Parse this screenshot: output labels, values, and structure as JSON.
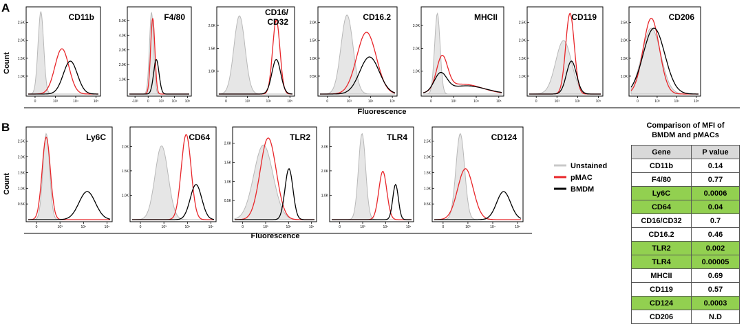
{
  "panel_a_label": "A",
  "panel_b_label": "B",
  "y_axis_label": "Count",
  "x_axis_label": "Fluorescence",
  "legend": [
    {
      "name": "Unstained",
      "color": "#c8c8c8"
    },
    {
      "name": "pMAC",
      "color": "#e8262a"
    },
    {
      "name": "BMDM",
      "color": "#000000"
    }
  ],
  "chart_data": [
    {
      "type": "histogram",
      "panel": "A",
      "marker": "CD11b",
      "title_lines": [
        "CD11b"
      ],
      "yticks": [
        "1.0K",
        "1.5K",
        "2.0K",
        "2.5K"
      ],
      "xticks": [
        "0",
        "10³",
        "10⁴",
        "10⁵"
      ],
      "series": [
        {
          "name": "Unstained",
          "peaks": [
            [
              0.18,
              0.04,
              1.0
            ]
          ]
        },
        {
          "name": "pMAC",
          "peaks": [
            [
              0.48,
              0.1,
              0.55
            ]
          ]
        },
        {
          "name": "BMDM",
          "peaks": [
            [
              0.6,
              0.1,
              0.4
            ]
          ]
        }
      ]
    },
    {
      "type": "histogram",
      "panel": "A",
      "marker": "F4/80",
      "title_lines": [
        "F4/80"
      ],
      "yticks": [
        "1.0K",
        "2.0K",
        "3.0K",
        "4.0K",
        "5.0K"
      ],
      "xticks": [
        "-10³",
        "0",
        "10³",
        "10⁴",
        "10⁵"
      ],
      "series": [
        {
          "name": "Unstained",
          "peaks": [
            [
              0.37,
              0.035,
              0.99
            ]
          ]
        },
        {
          "name": "pMAC",
          "peaks": [
            [
              0.39,
              0.035,
              0.92
            ]
          ]
        },
        {
          "name": "BMDM",
          "peaks": [
            [
              0.45,
              0.045,
              0.42
            ]
          ]
        }
      ]
    },
    {
      "type": "histogram",
      "panel": "A",
      "marker": "CD16/CD32",
      "title_lines": [
        "CD16/",
        "CD32"
      ],
      "yticks": [
        "1.0K",
        "1.5K",
        "2.0K"
      ],
      "xticks": [
        "0",
        "10³",
        "10⁴",
        "10⁵"
      ],
      "series": [
        {
          "name": "Unstained",
          "peaks": [
            [
              0.28,
              0.075,
              0.95
            ]
          ]
        },
        {
          "name": "pMAC",
          "peaks": [
            [
              0.78,
              0.05,
              0.9
            ]
          ]
        },
        {
          "name": "BMDM",
          "peaks": [
            [
              0.78,
              0.06,
              0.42
            ]
          ]
        }
      ]
    },
    {
      "type": "histogram",
      "panel": "A",
      "marker": "CD16.2",
      "title_lines": [
        "CD16.2"
      ],
      "yticks": [
        "0.5K",
        "1.0K",
        "1.5K",
        "2.0K"
      ],
      "xticks": [
        "0",
        "10³",
        "10⁴",
        "10⁵"
      ],
      "series": [
        {
          "name": "Unstained",
          "peaks": [
            [
              0.36,
              0.08,
              0.96
            ]
          ]
        },
        {
          "name": "pMAC",
          "peaks": [
            [
              0.62,
              0.13,
              0.75
            ]
          ]
        },
        {
          "name": "BMDM",
          "peaks": [
            [
              0.66,
              0.13,
              0.45
            ]
          ]
        }
      ]
    },
    {
      "type": "histogram",
      "panel": "A",
      "marker": "MHCII",
      "title_lines": [
        "MHCII"
      ],
      "yticks": [
        "1.0K",
        "2.0K",
        "3.0K"
      ],
      "xticks": [
        "0",
        "10³",
        "10⁴",
        "10⁵"
      ],
      "series": [
        {
          "name": "Unstained",
          "peaks": [
            [
              0.18,
              0.035,
              0.98
            ]
          ]
        },
        {
          "name": "pMAC",
          "peaks": [
            [
              0.24,
              0.07,
              0.4
            ],
            [
              0.5,
              0.25,
              0.12
            ]
          ]
        },
        {
          "name": "BMDM",
          "peaks": [
            [
              0.22,
              0.08,
              0.22
            ],
            [
              0.55,
              0.25,
              0.1
            ]
          ]
        }
      ]
    },
    {
      "type": "histogram",
      "panel": "A",
      "marker": "CD119",
      "title_lines": [
        "CD119"
      ],
      "yticks": [
        "1.0K",
        "1.5K",
        "2.0K",
        "2.5K"
      ],
      "xticks": [
        "0",
        "10³",
        "10⁴",
        "10⁵"
      ],
      "series": [
        {
          "name": "Unstained",
          "peaks": [
            [
              0.48,
              0.11,
              0.65
            ]
          ]
        },
        {
          "name": "pMAC",
          "peaks": [
            [
              0.57,
              0.06,
              0.98
            ]
          ]
        },
        {
          "name": "BMDM",
          "peaks": [
            [
              0.59,
              0.07,
              0.4
            ]
          ]
        }
      ]
    },
    {
      "type": "histogram",
      "panel": "A",
      "marker": "CD206",
      "title_lines": [
        "CD206"
      ],
      "yticks": [
        "1.0K",
        "1.5K",
        "2.0K",
        "2.5K"
      ],
      "xticks": [
        "0",
        "10³",
        "10⁴",
        "10⁵"
      ],
      "series": [
        {
          "name": "Unstained",
          "peaks": [
            [
              0.3,
              0.14,
              0.8
            ]
          ]
        },
        {
          "name": "pMAC",
          "peaks": [
            [
              0.3,
              0.12,
              0.92
            ]
          ]
        },
        {
          "name": "BMDM",
          "peaks": [
            [
              0.34,
              0.16,
              0.8
            ]
          ]
        }
      ]
    },
    {
      "type": "histogram",
      "panel": "B",
      "marker": "Ly6C",
      "title_lines": [
        "Ly6C"
      ],
      "yticks": [
        "0.5K",
        "1.0K",
        "1.5K",
        "2.0K",
        "2.5K"
      ],
      "xticks": [
        "0",
        "10³",
        "10⁴",
        "10⁵"
      ],
      "series": [
        {
          "name": "Unstained",
          "peaks": [
            [
              0.22,
              0.04,
              0.98
            ]
          ]
        },
        {
          "name": "pMAC",
          "peaks": [
            [
              0.22,
              0.05,
              0.94
            ]
          ]
        },
        {
          "name": "BMDM",
          "peaks": [
            [
              0.72,
              0.1,
              0.32
            ]
          ]
        }
      ]
    },
    {
      "type": "histogram",
      "panel": "B",
      "marker": "CD64",
      "title_lines": [
        "CD64"
      ],
      "yticks": [
        "1.0K",
        "1.5K",
        "2.0K"
      ],
      "xticks": [
        "0",
        "10³",
        "10⁴",
        "10⁵"
      ],
      "series": [
        {
          "name": "Unstained",
          "peaks": [
            [
              0.36,
              0.08,
              0.84
            ]
          ]
        },
        {
          "name": "pMAC",
          "peaks": [
            [
              0.66,
              0.06,
              0.97
            ]
          ]
        },
        {
          "name": "BMDM",
          "peaks": [
            [
              0.78,
              0.07,
              0.4
            ]
          ]
        }
      ]
    },
    {
      "type": "histogram",
      "panel": "B",
      "marker": "TLR2",
      "title_lines": [
        "TLR2"
      ],
      "yticks": [
        "0.5K",
        "1.0K",
        "1.5K",
        "2.0K"
      ],
      "xticks": [
        "0",
        "10³",
        "10⁴",
        "10⁵"
      ],
      "series": [
        {
          "name": "Unstained",
          "peaks": [
            [
              0.36,
              0.12,
              0.85
            ]
          ]
        },
        {
          "name": "pMAC",
          "peaks": [
            [
              0.42,
              0.1,
              0.93
            ]
          ]
        },
        {
          "name": "BMDM",
          "peaks": [
            [
              0.68,
              0.05,
              0.58
            ]
          ]
        }
      ]
    },
    {
      "type": "histogram",
      "panel": "B",
      "marker": "TLR4",
      "title_lines": [
        "TLR4"
      ],
      "yticks": [
        "1.0K",
        "2.0K",
        "3.0K"
      ],
      "xticks": [
        "0",
        "10³",
        "10⁴",
        "10⁵"
      ],
      "series": [
        {
          "name": "Unstained",
          "peaks": [
            [
              0.38,
              0.045,
              0.98
            ]
          ]
        },
        {
          "name": "pMAC",
          "peaks": [
            [
              0.64,
              0.05,
              0.55
            ]
          ]
        },
        {
          "name": "BMDM",
          "peaks": [
            [
              0.8,
              0.035,
              0.4
            ]
          ]
        }
      ]
    },
    {
      "type": "histogram",
      "panel": "B",
      "marker": "CD124",
      "title_lines": [
        "CD124"
      ],
      "yticks": [
        "0.5K",
        "1.0K",
        "1.5K",
        "2.0K",
        "2.5K"
      ],
      "xticks": [
        "0",
        "10³",
        "10⁴",
        "10⁵"
      ],
      "series": [
        {
          "name": "Unstained",
          "peaks": [
            [
              0.3,
              0.05,
              0.98
            ]
          ]
        },
        {
          "name": "pMAC",
          "peaks": [
            [
              0.36,
              0.09,
              0.58
            ]
          ]
        },
        {
          "name": "BMDM",
          "peaks": [
            [
              0.8,
              0.08,
              0.32
            ]
          ]
        }
      ]
    }
  ],
  "table": {
    "title_line1": "Comparison of MFI of",
    "title_line2": "BMDM and pMACs",
    "col_gene": "Gene",
    "col_p": "P value",
    "rows": [
      {
        "gene": "CD11b",
        "p": "0.14",
        "sig": false
      },
      {
        "gene": "F4/80",
        "p": "0.77",
        "sig": false
      },
      {
        "gene": "Ly6C",
        "p": "0.0006",
        "sig": true
      },
      {
        "gene": "CD64",
        "p": "0.04",
        "sig": true
      },
      {
        "gene": "CD16/CD32",
        "p": "0.7",
        "sig": false
      },
      {
        "gene": "CD16.2",
        "p": "0.46",
        "sig": false
      },
      {
        "gene": "TLR2",
        "p": "0.002",
        "sig": true
      },
      {
        "gene": "TLR4",
        "p": "0.00005",
        "sig": true
      },
      {
        "gene": "MHCII",
        "p": "0.69",
        "sig": false
      },
      {
        "gene": "CD119",
        "p": "0.57",
        "sig": false
      },
      {
        "gene": "CD124",
        "p": "0.0003",
        "sig": true
      },
      {
        "gene": "CD206",
        "p": "N.D",
        "sig": false
      }
    ]
  }
}
